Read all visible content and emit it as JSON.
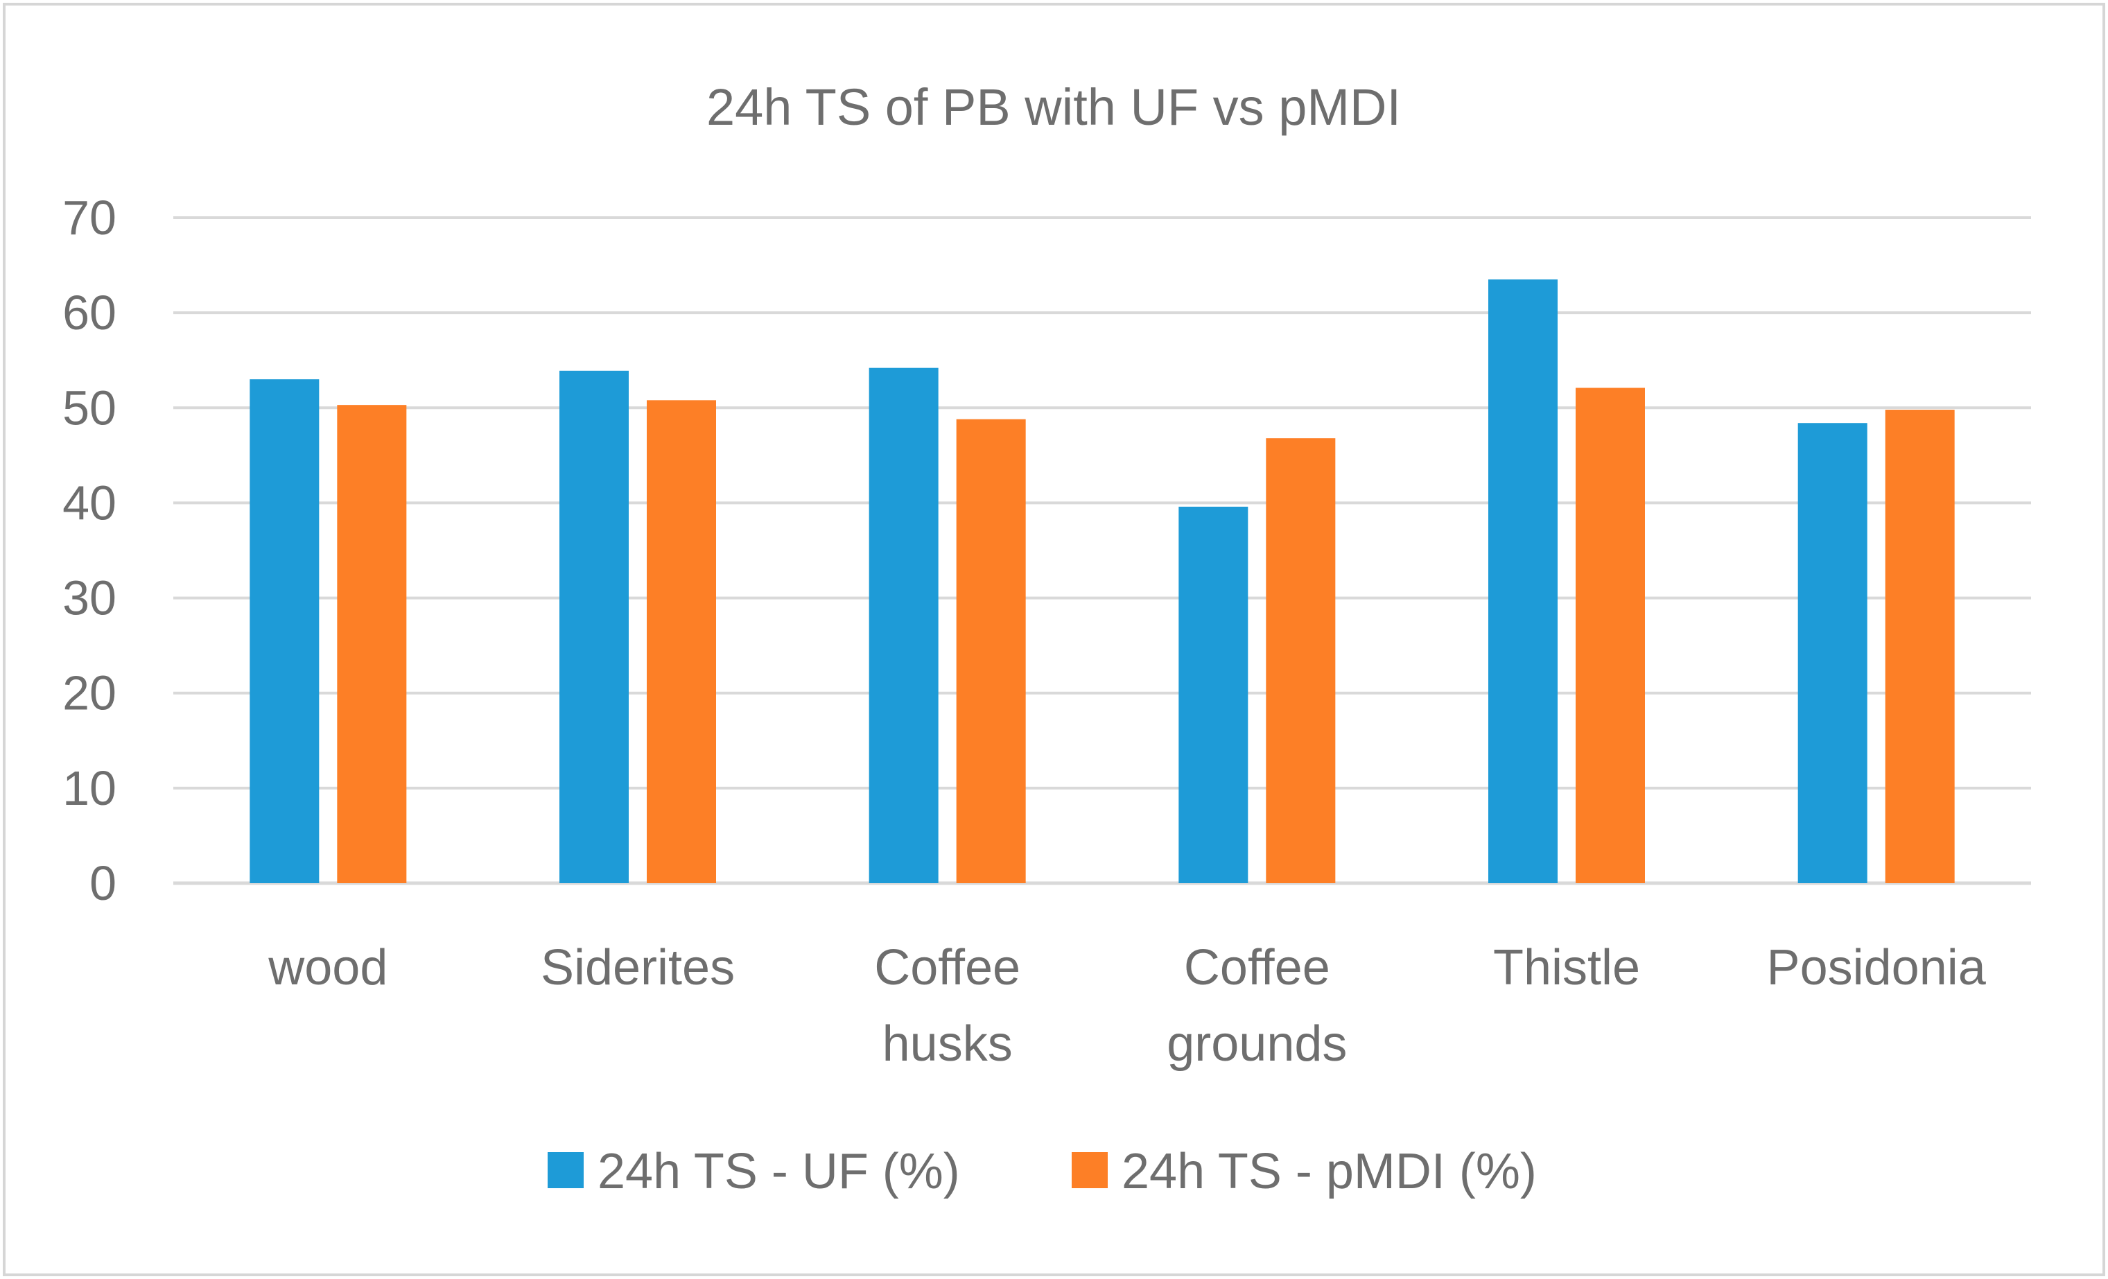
{
  "chart_data": {
    "type": "bar",
    "title": "24h TS of PB with UF vs pMDI",
    "xlabel": "",
    "ylabel": "",
    "ylim": [
      0,
      70
    ],
    "yticks": [
      0,
      10,
      20,
      30,
      40,
      50,
      60,
      70
    ],
    "grid": true,
    "legend_position": "bottom",
    "categories": [
      [
        "wood"
      ],
      [
        "Siderites"
      ],
      [
        "Coffee",
        "husks"
      ],
      [
        "Coffee",
        "grounds"
      ],
      [
        "Thistle"
      ],
      [
        "Posidonia"
      ]
    ],
    "series": [
      {
        "name": "24h TS - UF (%)",
        "color": "#1e9bd7",
        "values": [
          53.0,
          53.9,
          54.2,
          39.6,
          63.5,
          48.4
        ]
      },
      {
        "name": "24h TS - pMDI (%)",
        "color": "#fd7f26",
        "values": [
          50.3,
          50.8,
          48.8,
          46.8,
          52.1,
          49.8
        ]
      }
    ]
  },
  "style": {
    "text_color": "#6e6e6e",
    "grid_color": "#d9d9d9",
    "border_color": "#d6d6d6"
  }
}
